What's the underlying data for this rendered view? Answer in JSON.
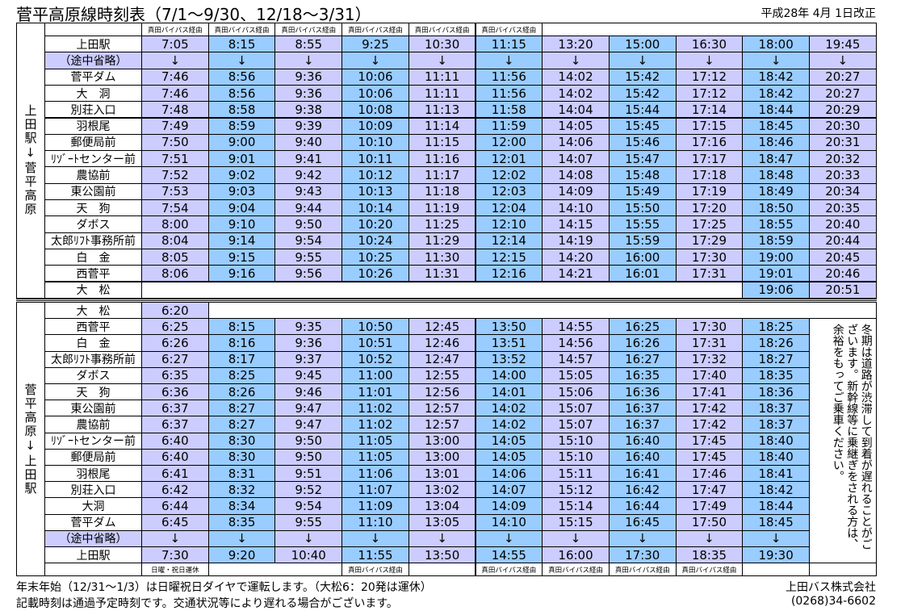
{
  "title": "菅平高原線時刻表（7/1～9/30、12/18～3/31）",
  "revision": "平成28年 4月 1日改正",
  "outbound": {
    "direction": "上田駅↓菅平高原",
    "notes": [
      "真田バイパス経由",
      "真田バイパス経由",
      "真田バイパス経由",
      "真田バイパス経由",
      "真田バイパス経由",
      "真田バイパス経由",
      null,
      null,
      null,
      null,
      null
    ],
    "stops": [
      "上田駅",
      "（途中省略）",
      "菅平ダム",
      "大　洞",
      "別荘入口",
      "羽根尾",
      "郵便局前",
      "ﾘｿﾞｰﾄセンター前",
      "農協前",
      "東公園前",
      "天　狗",
      "ダボス",
      "太郎ﾘﾌﾄ事務所前",
      "白　金",
      "西菅平",
      "大　松"
    ],
    "times": [
      [
        "7:05",
        "8:15",
        "8:55",
        "9:25",
        "10:30",
        "11:15",
        "13:20",
        "15:00",
        "16:30",
        "18:00",
        "19:45"
      ],
      [
        "↓",
        "↓",
        "↓",
        "↓",
        "↓",
        "↓",
        "↓",
        "↓",
        "↓",
        "↓",
        "↓"
      ],
      [
        "7:46",
        "8:56",
        "9:36",
        "10:06",
        "11:11",
        "11:56",
        "14:02",
        "15:42",
        "17:12",
        "18:42",
        "20:27"
      ],
      [
        "7:46",
        "8:56",
        "9:36",
        "10:06",
        "11:11",
        "11:56",
        "14:02",
        "15:42",
        "17:12",
        "18:42",
        "20:27"
      ],
      [
        "7:48",
        "8:58",
        "9:38",
        "10:08",
        "11:13",
        "11:58",
        "14:04",
        "15:44",
        "17:14",
        "18:44",
        "20:29"
      ],
      [
        "7:49",
        "8:59",
        "9:39",
        "10:09",
        "11:14",
        "11:59",
        "14:05",
        "15:45",
        "17:15",
        "18:45",
        "20:30"
      ],
      [
        "7:50",
        "9:00",
        "9:40",
        "10:10",
        "11:15",
        "12:00",
        "14:06",
        "15:46",
        "17:16",
        "18:46",
        "20:31"
      ],
      [
        "7:51",
        "9:01",
        "9:41",
        "10:11",
        "11:16",
        "12:01",
        "14:07",
        "15:47",
        "17:17",
        "18:47",
        "20:32"
      ],
      [
        "7:52",
        "9:02",
        "9:42",
        "10:12",
        "11:17",
        "12:02",
        "14:08",
        "15:48",
        "17:18",
        "18:48",
        "20:33"
      ],
      [
        "7:53",
        "9:03",
        "9:43",
        "10:13",
        "11:18",
        "12:03",
        "14:09",
        "15:49",
        "17:19",
        "18:49",
        "20:34"
      ],
      [
        "7:54",
        "9:04",
        "9:44",
        "10:14",
        "11:19",
        "12:04",
        "14:10",
        "15:50",
        "17:20",
        "18:50",
        "20:35"
      ],
      [
        "8:00",
        "9:10",
        "9:50",
        "10:20",
        "11:25",
        "12:10",
        "14:15",
        "15:55",
        "17:25",
        "18:55",
        "20:40"
      ],
      [
        "8:04",
        "9:14",
        "9:54",
        "10:24",
        "11:29",
        "12:14",
        "14:19",
        "15:59",
        "17:29",
        "18:59",
        "20:44"
      ],
      [
        "8:05",
        "9:15",
        "9:55",
        "10:25",
        "11:30",
        "12:15",
        "14:20",
        "16:00",
        "17:30",
        "19:00",
        "20:45"
      ],
      [
        "8:06",
        "9:16",
        "9:56",
        "10:26",
        "11:31",
        "12:16",
        "14:21",
        "16:01",
        "17:31",
        "19:01",
        "20:46"
      ],
      [
        null,
        null,
        null,
        null,
        null,
        null,
        null,
        null,
        null,
        "19:06",
        "20:51"
      ]
    ]
  },
  "inbound": {
    "direction": "菅平高原↓上田駅",
    "stops": [
      "大　松",
      "西菅平",
      "白　金",
      "太郎ﾘﾌﾄ事務所前",
      "ダボス",
      "天　狗",
      "東公園前",
      "農協前",
      "ﾘｿﾞｰﾄセンター前",
      "郵便局前",
      "羽根尾",
      "別荘入口",
      "大洞",
      "菅平ダム",
      "（途中省略）",
      "上田駅"
    ],
    "times": [
      [
        "6:20",
        null,
        null,
        null,
        null,
        null,
        null,
        null,
        null,
        null
      ],
      [
        "6:25",
        "8:15",
        "9:35",
        "10:50",
        "12:45",
        "13:50",
        "14:55",
        "16:25",
        "17:30",
        "18:25"
      ],
      [
        "6:26",
        "8:16",
        "9:36",
        "10:51",
        "12:46",
        "13:51",
        "14:56",
        "16:26",
        "17:31",
        "18:26"
      ],
      [
        "6:27",
        "8:17",
        "9:37",
        "10:52",
        "12:47",
        "13:52",
        "14:57",
        "16:27",
        "17:32",
        "18:27"
      ],
      [
        "6:35",
        "8:25",
        "9:45",
        "11:00",
        "12:55",
        "14:00",
        "15:05",
        "16:35",
        "17:40",
        "18:35"
      ],
      [
        "6:36",
        "8:26",
        "9:46",
        "11:01",
        "12:56",
        "14:01",
        "15:06",
        "16:36",
        "17:41",
        "18:36"
      ],
      [
        "6:37",
        "8:27",
        "9:47",
        "11:02",
        "12:57",
        "14:02",
        "15:07",
        "16:37",
        "17:42",
        "18:37"
      ],
      [
        "6:37",
        "8:27",
        "9:47",
        "11:02",
        "12:57",
        "14:02",
        "15:07",
        "16:37",
        "17:42",
        "18:37"
      ],
      [
        "6:40",
        "8:30",
        "9:50",
        "11:05",
        "13:00",
        "14:05",
        "15:10",
        "16:40",
        "17:45",
        "18:40"
      ],
      [
        "6:40",
        "8:30",
        "9:50",
        "11:05",
        "13:00",
        "14:05",
        "15:10",
        "16:40",
        "17:45",
        "18:40"
      ],
      [
        "6:41",
        "8:31",
        "9:51",
        "11:06",
        "13:01",
        "14:06",
        "15:11",
        "16:41",
        "17:46",
        "18:41"
      ],
      [
        "6:42",
        "8:32",
        "9:52",
        "11:07",
        "13:02",
        "14:07",
        "15:12",
        "16:42",
        "17:47",
        "18:42"
      ],
      [
        "6:44",
        "8:34",
        "9:54",
        "11:09",
        "13:04",
        "14:09",
        "15:14",
        "16:44",
        "17:49",
        "18:44"
      ],
      [
        "6:45",
        "8:35",
        "9:55",
        "11:10",
        "13:05",
        "14:10",
        "15:15",
        "16:45",
        "17:50",
        "18:45"
      ],
      [
        "↓",
        "↓",
        "↓",
        "↓",
        "↓",
        "↓",
        "↓",
        "↓",
        "↓",
        "↓"
      ],
      [
        "7:30",
        "9:20",
        "10:40",
        "11:55",
        "13:50",
        "14:55",
        "16:00",
        "17:30",
        "18:35",
        "19:30"
      ]
    ],
    "notes": [
      "日曜・祝日運休",
      null,
      null,
      "真田バイパス経由",
      null,
      "真田バイパス経由",
      "真田バイパス経由",
      "真田バイパス経由",
      "真田バイパス経由",
      null
    ],
    "remark": "冬期は道路が渋滞して到着が遅れることがございます。新幹線等に乗継ぎをされる方は、余裕をもってご乗車ください。"
  },
  "footer": {
    "notes": [
      "年末年始（12/31～1/3）は日曜祝日ダイヤで運転します。（大松6：20発は運休）",
      "記載時刻は通過予定時刻です。交通状況等により遅れる場合がございます。"
    ],
    "company": "上田バス株式会社",
    "phone": "(0268)34-6602"
  }
}
